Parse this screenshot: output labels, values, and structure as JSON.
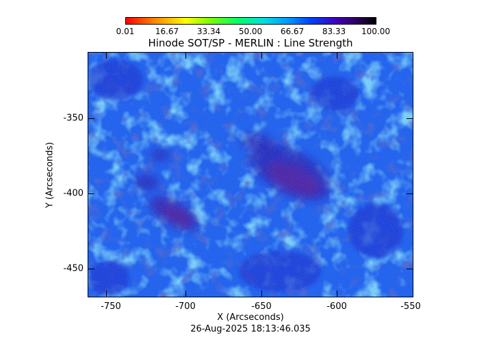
{
  "colorbar": {
    "labels": [
      "0.01",
      "16.67",
      "33.34",
      "50.00",
      "66.67",
      "83.33",
      "100.00"
    ]
  },
  "title": "Hinode SOT/SP - MERLIN : Line Strength",
  "axes": {
    "xlabel": "X (Arcseconds)",
    "ylabel": "Y (Arcseconds)",
    "xticks": [
      "-750",
      "-700",
      "-650",
      "-600",
      "-550"
    ],
    "yticks": [
      "-350",
      "-400",
      "-450"
    ]
  },
  "timestamp": "26-Aug-2025 18:13:46.035",
  "colors": {
    "base_blue": "#1f5cf0",
    "cyan": "#3fb8ff",
    "dark_blue": "#1a1ab8",
    "purple": "#5a1a9a"
  }
}
